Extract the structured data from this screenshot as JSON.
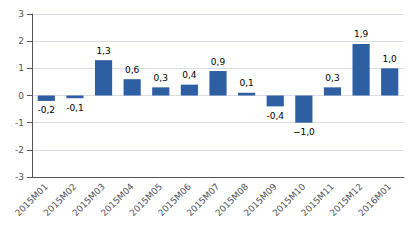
{
  "chart_data": {
    "type": "bar",
    "categories": [
      "2015M01",
      "2015M02",
      "2015M03",
      "2015M04",
      "2015M05",
      "2015M06",
      "2015M07",
      "2015M08",
      "2015M09",
      "2015M10",
      "2015M11",
      "2015M12",
      "2016M01"
    ],
    "values": [
      -0.2,
      -0.1,
      1.3,
      0.6,
      0.3,
      0.4,
      0.9,
      0.1,
      -0.4,
      -1.0,
      0.3,
      1.9,
      1.0
    ],
    "value_labels": [
      "-0,2",
      "-0,1",
      "1,3",
      "0,6",
      "0,3",
      "0,4",
      "0,9",
      "0,1",
      "-0,4",
      "−1,0",
      "0,3",
      "1,9",
      "1,0"
    ],
    "data_labels": true,
    "color": "#2E5FA3",
    "ylim": [
      -3,
      3
    ],
    "yticks": [
      -3,
      -2,
      -1,
      0,
      1,
      2,
      3
    ],
    "grid": true
  }
}
